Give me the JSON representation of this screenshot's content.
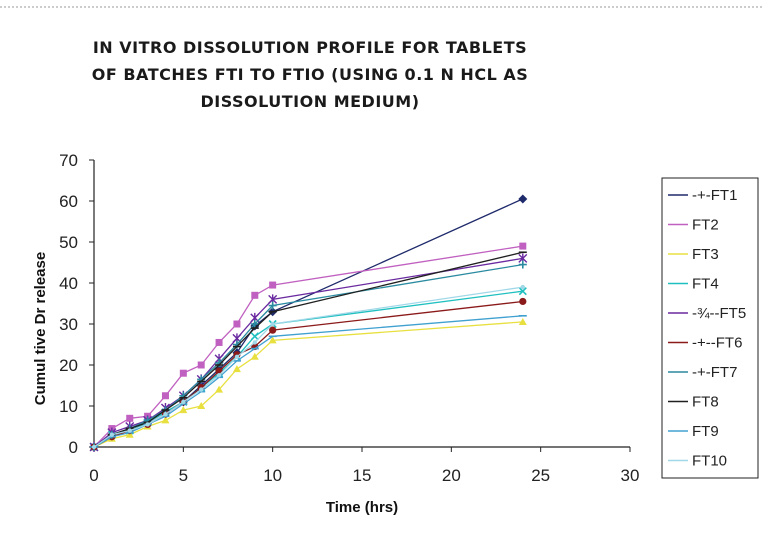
{
  "chart_data": {
    "type": "line",
    "title_lines": [
      "IN VITRO DISSOLUTION PROFILE FOR TABLETS",
      "OF BATCHES FTI TO FTIO (USING 0.1 N HCL AS",
      "DISSOLUTION MEDIUM)"
    ],
    "xlabel": "Time (hrs)",
    "ylabel": "Cumul tive Dr release",
    "xlim": [
      0,
      30
    ],
    "ylim": [
      0,
      70
    ],
    "xticks": [
      "0",
      "5",
      "10",
      "15",
      "20",
      "25",
      "30"
    ],
    "yticks": [
      "0",
      "10",
      "20",
      "30",
      "40",
      "50",
      "60",
      "70"
    ],
    "grid": false,
    "legend_position": "right",
    "x": [
      0,
      1,
      2,
      3,
      4,
      5,
      6,
      7,
      8,
      9,
      10,
      24
    ],
    "series": [
      {
        "name": "-+-FT1",
        "color": "#1f2a6b",
        "marker": "diamond",
        "values": [
          0,
          3,
          4.5,
          6,
          8.5,
          11,
          15,
          19,
          23,
          29.5,
          33,
          60.5
        ]
      },
      {
        "name": "FT2",
        "color": "#c060c0",
        "marker": "square",
        "values": [
          0,
          4.5,
          7,
          7.5,
          12.5,
          18,
          20,
          25.5,
          30,
          37,
          39.5,
          49
        ]
      },
      {
        "name": "FT3",
        "color": "#e8e040",
        "marker": "triangle",
        "values": [
          0,
          2,
          3,
          5,
          6.5,
          9,
          10,
          14,
          19,
          22,
          26,
          30.5
        ]
      },
      {
        "name": "FT4",
        "color": "#20c0c0",
        "marker": "x",
        "values": [
          0,
          3,
          4,
          6,
          8.5,
          11,
          14.5,
          18,
          22,
          27,
          30,
          38
        ]
      },
      {
        "name": "-¾--FT5",
        "color": "#6a2aa0",
        "marker": "star",
        "values": [
          0,
          3.5,
          5,
          6.5,
          9.5,
          12.5,
          16.5,
          21.5,
          26.5,
          31.5,
          36,
          46
        ]
      },
      {
        "name": "-+--FT6",
        "color": "#8b1a1a",
        "marker": "circle",
        "values": [
          0,
          2.5,
          4,
          5.5,
          8,
          11,
          14.5,
          18.5,
          22.5,
          24.5,
          28.5,
          35.5
        ]
      },
      {
        "name": "-+-FT7",
        "color": "#2a8aa0",
        "marker": "plus",
        "values": [
          0,
          3,
          4.5,
          6.5,
          9,
          12.5,
          16.5,
          20.5,
          25,
          30,
          34.5,
          44.5
        ]
      },
      {
        "name": "FT8",
        "color": "#202020",
        "marker": "dash",
        "values": [
          0,
          3,
          4.5,
          6,
          9,
          12,
          16,
          20,
          24.5,
          29,
          33,
          47.5
        ]
      },
      {
        "name": "FT9",
        "color": "#40a0d0",
        "marker": "dash",
        "values": [
          0,
          2.5,
          3.5,
          5.5,
          7.5,
          10.5,
          13.5,
          17,
          21,
          24,
          27,
          32
        ]
      },
      {
        "name": "FT10",
        "color": "#a0d8e8",
        "marker": "dot",
        "values": [
          0,
          3,
          4,
          5.5,
          8,
          11,
          14,
          17.5,
          22,
          25.5,
          30,
          39
        ]
      }
    ]
  }
}
